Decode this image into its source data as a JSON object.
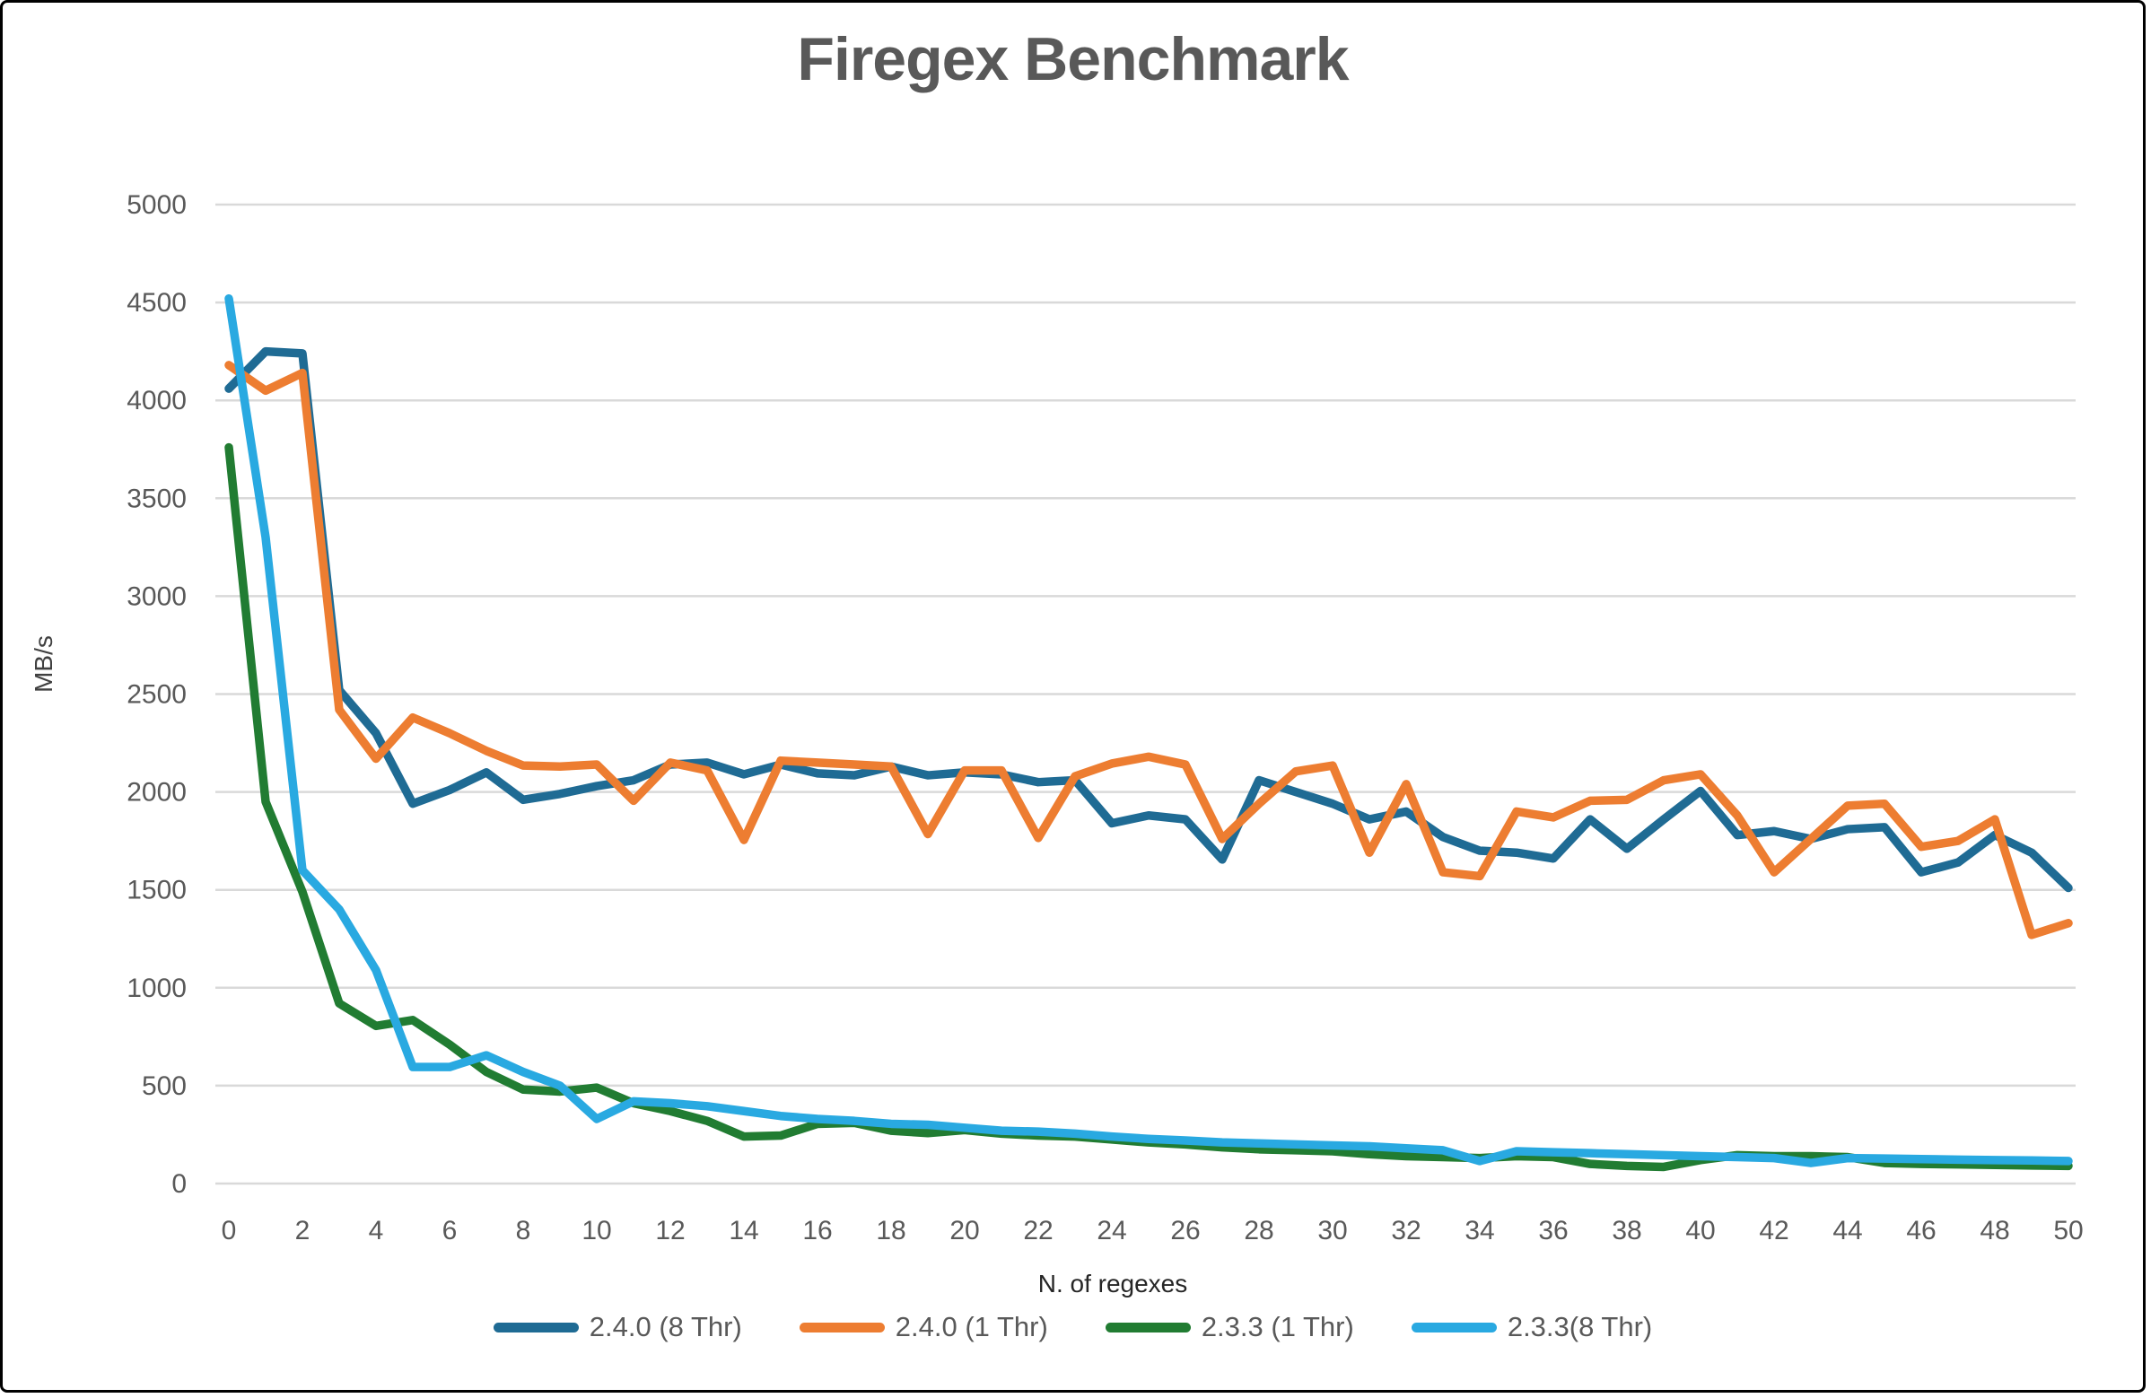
{
  "chart_data": {
    "type": "line",
    "title": "Firegex Benchmark",
    "xlabel": "N. of regexes",
    "ylabel": "MB/s",
    "xlim": [
      0,
      50
    ],
    "ylim": [
      0,
      5000
    ],
    "grid": true,
    "legend_position": "bottom",
    "x_ticks": [
      0,
      2,
      4,
      6,
      8,
      10,
      12,
      14,
      16,
      18,
      20,
      22,
      24,
      26,
      28,
      30,
      32,
      34,
      36,
      38,
      40,
      42,
      44,
      46,
      48,
      50
    ],
    "y_ticks": [
      0,
      500,
      1000,
      1500,
      2000,
      2500,
      3000,
      3500,
      4000,
      4500,
      5000
    ],
    "x": [
      0,
      1,
      2,
      3,
      4,
      5,
      6,
      7,
      8,
      9,
      10,
      11,
      12,
      13,
      14,
      15,
      16,
      17,
      18,
      19,
      20,
      21,
      22,
      23,
      24,
      25,
      26,
      27,
      28,
      29,
      30,
      31,
      32,
      33,
      34,
      35,
      36,
      37,
      38,
      39,
      40,
      41,
      42,
      43,
      44,
      45,
      46,
      47,
      48,
      49,
      50
    ],
    "series": [
      {
        "name": "2.4.0 (8 Thr)",
        "color": "#1F6B94",
        "values": [
          4060,
          4250,
          4240,
          2520,
          2300,
          1940,
          2010,
          2100,
          1960,
          1990,
          2030,
          2060,
          2140,
          2150,
          2090,
          2140,
          2095,
          2085,
          2130,
          2085,
          2100,
          2090,
          2050,
          2060,
          1840,
          1880,
          1860,
          1655,
          2060,
          2000,
          1940,
          1860,
          1900,
          1770,
          1700,
          1690,
          1660,
          1860,
          1710,
          1860,
          2005,
          1780,
          1800,
          1760,
          1810,
          1820,
          1590,
          1640,
          1780,
          1690,
          1510
        ]
      },
      {
        "name": "2.4.0 (1 Thr)",
        "color": "#ED7D31",
        "values": [
          4180,
          4050,
          4140,
          2420,
          2170,
          2380,
          2300,
          2210,
          2135,
          2130,
          2140,
          1955,
          2150,
          2110,
          1755,
          2160,
          2150,
          2140,
          2130,
          1785,
          2110,
          2110,
          1765,
          2080,
          2145,
          2180,
          2140,
          1760,
          1940,
          2105,
          2135,
          1690,
          2040,
          1590,
          1570,
          1900,
          1870,
          1955,
          1960,
          2060,
          2090,
          1880,
          1590,
          1760,
          1930,
          1940,
          1720,
          1750,
          1860,
          1270,
          1330
        ]
      },
      {
        "name": "2.3.3 (1 Thr)",
        "color": "#217C32",
        "values": [
          3760,
          1950,
          1490,
          920,
          805,
          835,
          710,
          570,
          480,
          470,
          490,
          410,
          370,
          320,
          240,
          245,
          305,
          310,
          270,
          258,
          273,
          255,
          245,
          240,
          225,
          210,
          200,
          185,
          175,
          170,
          165,
          150,
          140,
          135,
          130,
          140,
          135,
          100,
          90,
          85,
          120,
          145,
          140,
          140,
          135,
          105,
          100,
          98,
          95,
          92,
          90
        ]
      },
      {
        "name": "2.3.3(8 Thr)",
        "color": "#29A9E1",
        "values": [
          4520,
          3300,
          1600,
          1400,
          1090,
          595,
          595,
          655,
          570,
          500,
          330,
          420,
          410,
          395,
          370,
          345,
          330,
          320,
          305,
          300,
          285,
          270,
          265,
          255,
          240,
          228,
          220,
          210,
          205,
          200,
          195,
          190,
          180,
          170,
          115,
          165,
          160,
          155,
          150,
          145,
          140,
          135,
          130,
          105,
          130,
          128,
          125,
          122,
          120,
          118,
          115
        ]
      }
    ],
    "gridline_color": "#D9D9D9",
    "tick_label_color": "#595959",
    "title_color": "#595959"
  }
}
